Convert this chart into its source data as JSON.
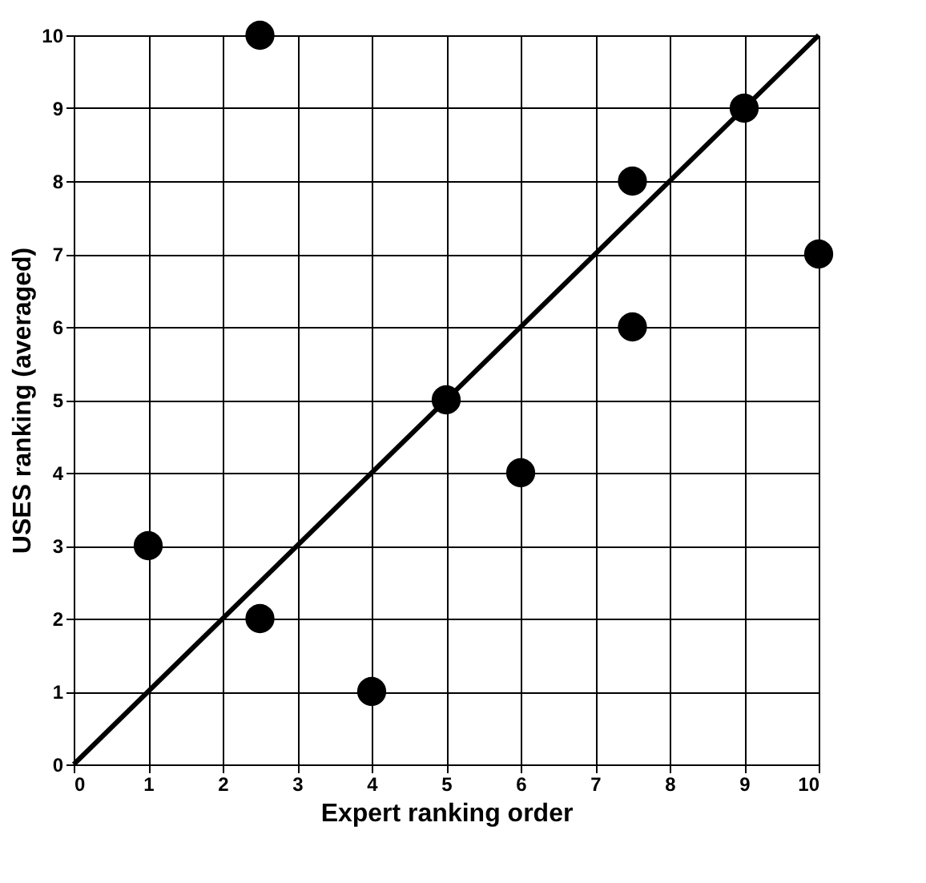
{
  "chart_data": {
    "type": "scatter",
    "xlabel": "Expert ranking order",
    "ylabel": "USES ranking (averaged)",
    "series": [
      {
        "color": "#000000",
        "marker": "circle",
        "x": [
          1,
          2.5,
          2.5,
          4,
          5,
          6,
          7.5,
          7.5,
          9,
          10
        ],
        "values": [
          3,
          2,
          10,
          1,
          5,
          4,
          8,
          6,
          9,
          7
        ]
      },
      {
        "type": "line",
        "color": "#000000",
        "marker": "none",
        "line_style": "solid",
        "x": [
          0,
          10
        ],
        "values": [
          0,
          10
        ]
      }
    ],
    "xlim": [
      0,
      10
    ],
    "ylim": [
      0,
      10
    ],
    "xticks": [
      0,
      1,
      2,
      3,
      4,
      5,
      6,
      7,
      8,
      9,
      10
    ],
    "yticks": [
      0,
      1,
      2,
      3,
      4,
      5,
      6,
      7,
      8,
      9,
      10
    ],
    "grid": true,
    "legend": false
  }
}
